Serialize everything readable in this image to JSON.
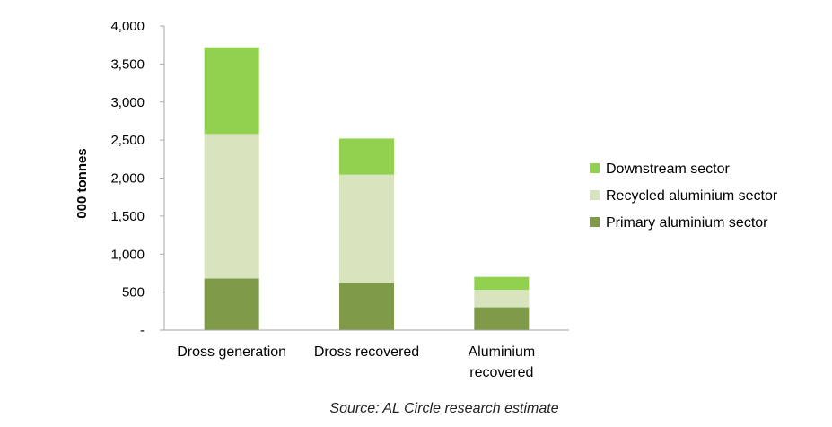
{
  "chart_data": {
    "type": "bar",
    "stacked": true,
    "categories": [
      "Dross generation",
      "Dross recovered",
      "Aluminium recovered"
    ],
    "series": [
      {
        "name": "Primary aluminium sector",
        "values": [
          680,
          620,
          300
        ],
        "color": "#7f9a48"
      },
      {
        "name": "Recycled aluminium sector",
        "values": [
          1900,
          1425,
          230
        ],
        "color": "#d7e4bd"
      },
      {
        "name": "Downstream sector",
        "values": [
          1140,
          475,
          170
        ],
        "color": "#92d050"
      }
    ],
    "ylabel": "000 tonnes",
    "ylim": [
      0,
      4000
    ],
    "yticks": [
      0,
      500,
      1000,
      1500,
      2000,
      2500,
      3000,
      3500,
      4000
    ],
    "ytick_labels": [
      "-",
      "500",
      "1,000",
      "1,500",
      "2,000",
      "2,500",
      "3,000",
      "3,500",
      "4,000"
    ],
    "grid": false,
    "legend_position": "right",
    "legend_order": [
      "Downstream sector",
      "Recycled aluminium sector",
      "Primary aluminium sector"
    ]
  },
  "source_note": "Source: AL Circle research estimate"
}
